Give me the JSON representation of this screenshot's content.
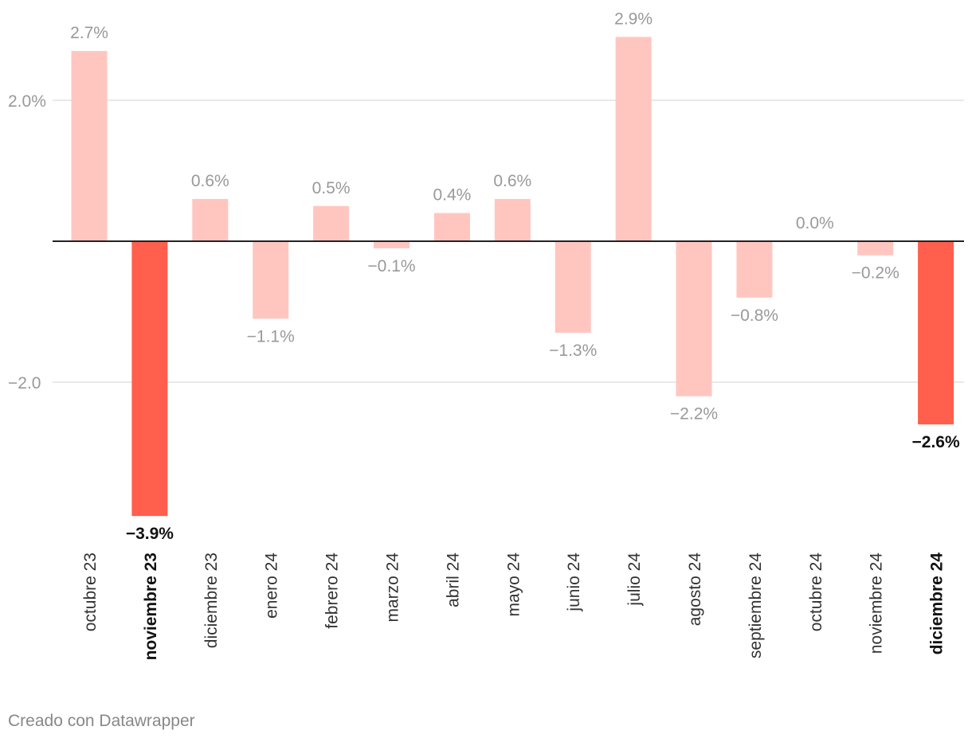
{
  "chart_data": {
    "type": "bar",
    "categories": [
      "octubre 23",
      "noviembre 23",
      "diciembre 23",
      "enero 24",
      "febrero 24",
      "marzo 24",
      "abril 24",
      "mayo 24",
      "junio 24",
      "julio 24",
      "agosto 24",
      "septiembre 24",
      "octubre 24",
      "noviembre 24",
      "diciembre 24"
    ],
    "values": [
      2.7,
      -3.9,
      0.6,
      -1.1,
      0.5,
      -0.1,
      0.4,
      0.6,
      -1.3,
      2.9,
      -2.2,
      -0.8,
      0.0,
      -0.2,
      -2.6
    ],
    "value_labels": [
      "2.7%",
      "−3.9%",
      "0.6%",
      "−1.1%",
      "0.5%",
      "−0.1%",
      "0.4%",
      "0.6%",
      "−1.3%",
      "2.9%",
      "−2.2%",
      "−0.8%",
      "0.0%",
      "−0.2%",
      "−2.6%"
    ],
    "highlighted": [
      false,
      true,
      false,
      false,
      false,
      false,
      false,
      false,
      false,
      false,
      false,
      false,
      false,
      false,
      true
    ],
    "y_ticks": [
      {
        "value": 2.0,
        "label": "2.0%"
      },
      {
        "value": -2.0,
        "label": "−2.0"
      }
    ],
    "ylim": [
      -4.2,
      3.2
    ],
    "grid": true,
    "colors": {
      "highlight": "#ff5f4c",
      "normal": "#ffc6c0",
      "label_normal": "#999999",
      "label_highlight": "#111111",
      "grid": "#e2e2e2",
      "baseline": "#222222"
    }
  },
  "footer": {
    "credit": "Creado con Datawrapper"
  }
}
